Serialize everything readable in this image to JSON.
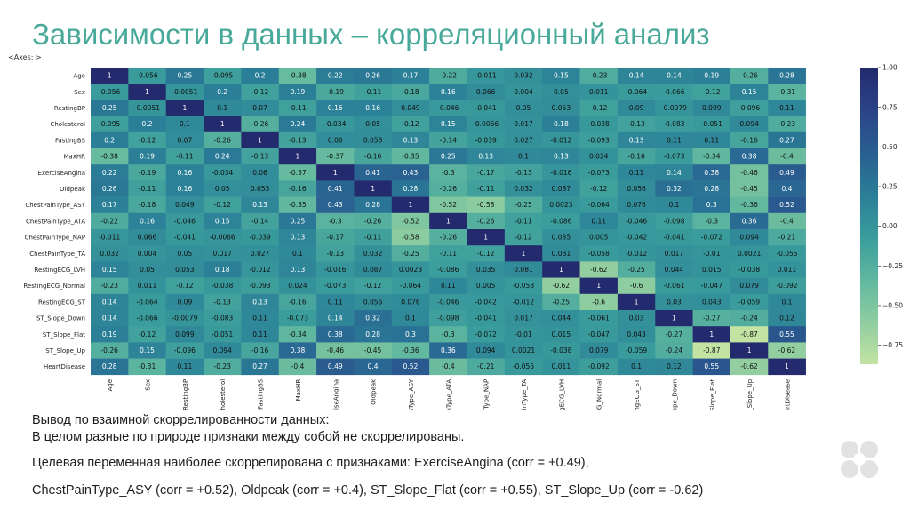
{
  "slide": {
    "title": "Зависимости в данных – корреляционный анализ",
    "axes_label": "<Axes: >"
  },
  "chart_data": {
    "type": "heatmap",
    "variables": [
      "Age",
      "Sex",
      "RestingBP",
      "Cholesterol",
      "FastingBS",
      "MaxHR",
      "ExerciseAngina",
      "Oldpeak",
      "ChestPainType_ASY",
      "ChestPainType_ATA",
      "ChestPainType_NAP",
      "ChestPainType_TA",
      "RestingECG_LVH",
      "RestingECG_Normal",
      "RestingECG_ST",
      "ST_Slope_Down",
      "ST_Slope_Flat",
      "ST_Slope_Up",
      "HeartDisease"
    ],
    "column_tick_labels": [
      "Age",
      "Sex",
      "RestingBP",
      "Cholesterol",
      "FastingBS",
      "MaxHR",
      "rciseAngina",
      "Oldpeak",
      "inType_ASY",
      "inType_ATA",
      "inType_NAP",
      "ainType_TA",
      "ngECG_LVH",
      "CG_Normal",
      "tingECG_ST",
      "Slope_Down",
      "_Slope_Flat",
      "_Slope_Up",
      "eartDisease"
    ],
    "matrix": [
      [
        1,
        -0.056,
        0.25,
        -0.095,
        0.2,
        -0.38,
        0.22,
        0.26,
        0.17,
        -0.22,
        -0.011,
        0.032,
        0.15,
        -0.23,
        0.14,
        0.14,
        0.19,
        -0.26,
        0.28
      ],
      [
        -0.056,
        1,
        -0.0051,
        0.2,
        -0.12,
        0.19,
        -0.19,
        -0.11,
        -0.18,
        0.16,
        0.066,
        0.004,
        0.05,
        0.011,
        -0.064,
        -0.066,
        -0.12,
        0.15,
        -0.31
      ],
      [
        0.25,
        -0.0051,
        1,
        0.1,
        0.07,
        -0.11,
        0.16,
        0.16,
        0.049,
        -0.046,
        -0.041,
        0.05,
        0.053,
        -0.12,
        0.09,
        -0.0079,
        0.099,
        -0.096,
        0.11
      ],
      [
        -0.095,
        0.2,
        0.1,
        1,
        -0.26,
        0.24,
        -0.034,
        0.05,
        -0.12,
        0.15,
        -0.0066,
        0.017,
        0.18,
        -0.038,
        -0.13,
        -0.083,
        -0.051,
        0.094,
        -0.23
      ],
      [
        0.2,
        -0.12,
        0.07,
        -0.26,
        1,
        -0.13,
        0.06,
        0.053,
        0.13,
        -0.14,
        -0.039,
        0.027,
        -0.012,
        -0.093,
        0.13,
        0.11,
        0.11,
        -0.16,
        0.27
      ],
      [
        -0.38,
        0.19,
        -0.11,
        0.24,
        -0.13,
        1,
        -0.37,
        -0.16,
        -0.35,
        0.25,
        0.13,
        0.1,
        0.13,
        0.024,
        -0.16,
        -0.073,
        -0.34,
        0.38,
        -0.4
      ],
      [
        0.22,
        -0.19,
        0.16,
        -0.034,
        0.06,
        -0.37,
        1,
        0.41,
        0.43,
        -0.3,
        -0.17,
        -0.13,
        -0.016,
        -0.073,
        0.11,
        0.14,
        0.38,
        -0.46,
        0.49
      ],
      [
        0.26,
        -0.11,
        0.16,
        0.05,
        0.053,
        -0.16,
        0.41,
        1,
        0.28,
        -0.26,
        -0.11,
        0.032,
        0.087,
        -0.12,
        0.056,
        0.32,
        0.28,
        -0.45,
        0.4
      ],
      [
        0.17,
        -0.18,
        0.049,
        -0.12,
        0.13,
        -0.35,
        0.43,
        0.28,
        1,
        -0.52,
        -0.58,
        -0.25,
        0.0023,
        -0.064,
        0.076,
        0.1,
        0.3,
        -0.36,
        0.52
      ],
      [
        -0.22,
        0.16,
        -0.046,
        0.15,
        -0.14,
        0.25,
        -0.3,
        -0.26,
        -0.52,
        1,
        -0.26,
        -0.11,
        -0.086,
        0.11,
        -0.046,
        -0.098,
        -0.3,
        0.36,
        -0.4
      ],
      [
        -0.011,
        0.066,
        -0.041,
        -0.0066,
        -0.039,
        0.13,
        -0.17,
        -0.11,
        -0.58,
        -0.26,
        1,
        -0.12,
        0.035,
        0.005,
        -0.042,
        -0.041,
        -0.072,
        0.094,
        -0.21
      ],
      [
        0.032,
        0.004,
        0.05,
        0.017,
        0.027,
        0.1,
        -0.13,
        0.032,
        -0.25,
        -0.11,
        -0.12,
        1,
        0.081,
        -0.058,
        -0.012,
        0.017,
        -0.01,
        0.0021,
        -0.055
      ],
      [
        0.15,
        0.05,
        0.053,
        0.18,
        -0.012,
        0.13,
        -0.016,
        0.087,
        0.0023,
        -0.086,
        0.035,
        0.081,
        1,
        -0.62,
        -0.25,
        0.044,
        0.015,
        -0.038,
        0.011
      ],
      [
        -0.23,
        0.011,
        -0.12,
        -0.038,
        -0.093,
        0.024,
        -0.073,
        -0.12,
        -0.064,
        0.11,
        0.005,
        -0.058,
        -0.62,
        1,
        -0.6,
        -0.061,
        -0.047,
        0.079,
        -0.092
      ],
      [
        0.14,
        -0.064,
        0.09,
        -0.13,
        0.13,
        -0.16,
        0.11,
        0.056,
        0.076,
        -0.046,
        -0.042,
        -0.012,
        -0.25,
        -0.6,
        1,
        0.03,
        0.043,
        -0.059,
        0.1
      ],
      [
        0.14,
        -0.066,
        -0.0079,
        -0.083,
        0.11,
        -0.073,
        0.14,
        0.32,
        0.1,
        -0.098,
        -0.041,
        0.017,
        0.044,
        -0.061,
        0.03,
        1,
        -0.27,
        -0.24,
        0.12
      ],
      [
        0.19,
        -0.12,
        0.099,
        -0.051,
        0.11,
        -0.34,
        0.38,
        0.28,
        0.3,
        -0.3,
        -0.072,
        -0.01,
        0.015,
        -0.047,
        0.043,
        -0.27,
        1,
        -0.87,
        0.55
      ],
      [
        -0.26,
        0.15,
        -0.096,
        0.094,
        -0.16,
        0.38,
        -0.46,
        -0.45,
        -0.36,
        0.36,
        0.094,
        0.0021,
        -0.038,
        0.079,
        -0.059,
        -0.24,
        -0.87,
        1,
        -0.62
      ],
      [
        0.28,
        -0.31,
        0.11,
        -0.23,
        0.27,
        -0.4,
        0.49,
        0.4,
        0.52,
        -0.4,
        -0.21,
        -0.055,
        0.011,
        -0.092,
        0.1,
        0.12,
        0.55,
        -0.62,
        1
      ]
    ],
    "colorbar": {
      "ticks": [
        "1.00",
        "0.75",
        "0.50",
        "0.25",
        "0.00",
        "−0.25",
        "−0.50",
        "−0.75"
      ],
      "tick_values": [
        1,
        0.75,
        0.5,
        0.25,
        0,
        -0.25,
        -0.5,
        -0.75
      ],
      "range": [
        -0.87,
        1
      ],
      "colors": [
        "#c3e3a3",
        "#8fcda0",
        "#5fb79f",
        "#3a9c9c",
        "#2a7e97",
        "#2a5f91",
        "#2b4387",
        "#232a6e"
      ]
    }
  },
  "conclusion": {
    "heading": "Вывод по взаимной скоррелированности данных:",
    "line1": "В целом разные по природе признаки между собой не скоррелированы.",
    "line2": "Целевая переменная наиболее скоррелирована с признаками: ExerciseAngina (corr = +0.49),",
    "line3": "ChestPainType_ASY (corr = +0.52), Oldpeak   (corr = +0.4),  ST_Slope_Flat (corr = +0.55), ST_Slope_Up (corr = -0.62)"
  },
  "colors": {
    "title": "#48a99a",
    "logo": "#e2e2e2"
  }
}
